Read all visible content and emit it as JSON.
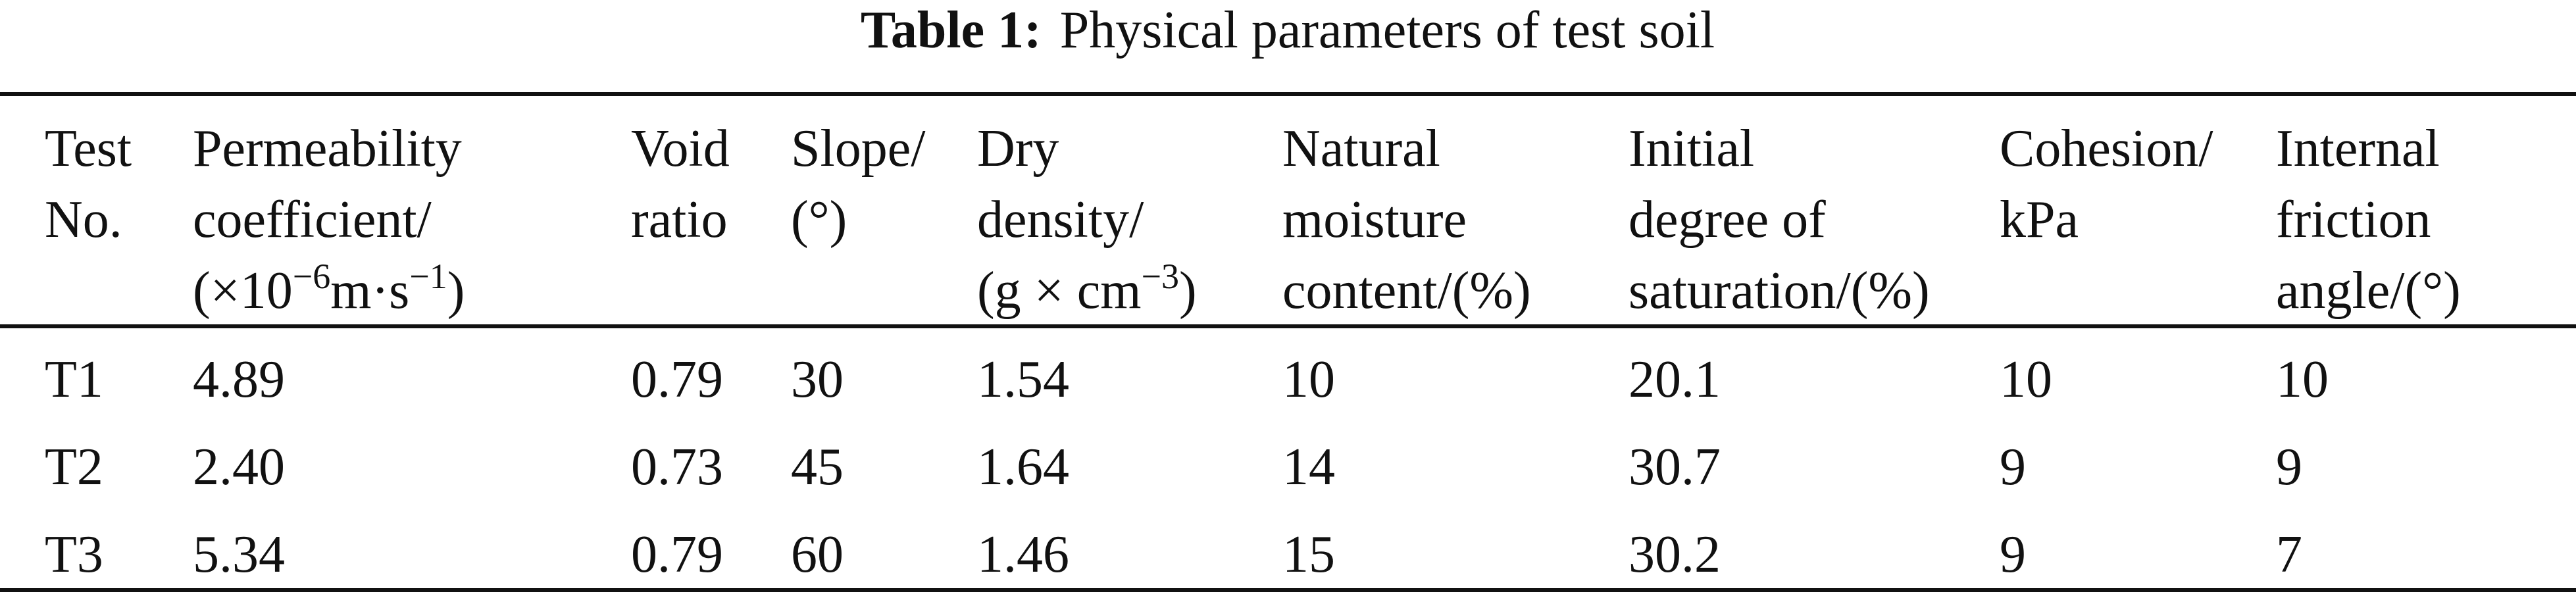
{
  "title": {
    "label": "Table 1:",
    "text": "Physical parameters of test soil"
  },
  "table": {
    "header": [
      [
        [
          "Test"
        ],
        [
          "No."
        ]
      ],
      [
        [
          "Permeability"
        ],
        [
          "coefficient/"
        ],
        [
          "(×10",
          {
            "sup": "−6"
          },
          "m·s",
          {
            "sup": "−1"
          },
          ")"
        ]
      ],
      [
        [
          "Void"
        ],
        [
          "ratio"
        ]
      ],
      [
        [
          "Slope/"
        ],
        [
          "(°)"
        ]
      ],
      [
        [
          "Dry"
        ],
        [
          "density/"
        ],
        [
          "(g × cm",
          {
            "sup": "−3"
          },
          ")"
        ]
      ],
      [
        [
          "Natural"
        ],
        [
          "moisture"
        ],
        [
          "content/(%)"
        ]
      ],
      [
        [
          "Initial"
        ],
        [
          "degree of"
        ],
        [
          "saturation/(%)"
        ]
      ],
      [
        [
          "Cohesion/"
        ],
        [
          "kPa"
        ]
      ],
      [
        [
          "Internal"
        ],
        [
          "friction"
        ],
        [
          "angle/(°)"
        ]
      ]
    ],
    "rows": [
      [
        "T1",
        "4.89",
        "0.79",
        "30",
        "1.54",
        "10",
        "20.1",
        "10",
        "10"
      ],
      [
        "T2",
        "2.40",
        "0.73",
        "45",
        "1.64",
        "14",
        "30.7",
        "9",
        "9"
      ],
      [
        "T3",
        "5.34",
        "0.79",
        "60",
        "1.46",
        "15",
        "30.2",
        "9",
        "7"
      ]
    ]
  }
}
